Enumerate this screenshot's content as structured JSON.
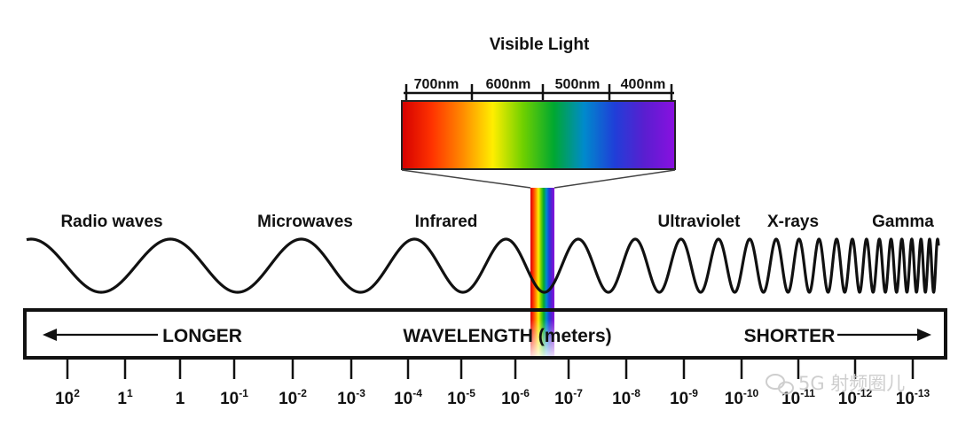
{
  "visible_light": {
    "title": "Visible Light",
    "wavelength_labels": [
      "700nm",
      "600nm",
      "500nm",
      "400nm"
    ]
  },
  "regions": [
    "Radio waves",
    "Microwaves",
    "Infrared",
    "Ultraviolet",
    "X-rays",
    "Gamma"
  ],
  "bar": {
    "longer": "LONGER",
    "center": "WAVELENGTH (meters)",
    "shorter": "SHORTER"
  },
  "scale": [
    {
      "base": "10",
      "exp": "2"
    },
    {
      "base": "1",
      "exp": "1"
    },
    {
      "base": "1",
      "exp": ""
    },
    {
      "base": "10",
      "exp": "-1"
    },
    {
      "base": "10",
      "exp": "-2"
    },
    {
      "base": "10",
      "exp": "-3"
    },
    {
      "base": "10",
      "exp": "-4"
    },
    {
      "base": "10",
      "exp": "-5"
    },
    {
      "base": "10",
      "exp": "-6"
    },
    {
      "base": "10",
      "exp": "-7"
    },
    {
      "base": "10",
      "exp": "-8"
    },
    {
      "base": "10",
      "exp": "-9"
    },
    {
      "base": "10",
      "exp": "-10"
    },
    {
      "base": "10",
      "exp": "-11"
    },
    {
      "base": "10",
      "exp": "-12"
    },
    {
      "base": "10",
      "exp": "-13"
    }
  ],
  "watermark": "5G 射频圈儿",
  "spectrum_colors": [
    "#d40000",
    "#ff3300",
    "#ff8a00",
    "#ffee00",
    "#6fd000",
    "#00a830",
    "#008acc",
    "#1f3fd8",
    "#5a1ed0",
    "#8a10e0"
  ]
}
